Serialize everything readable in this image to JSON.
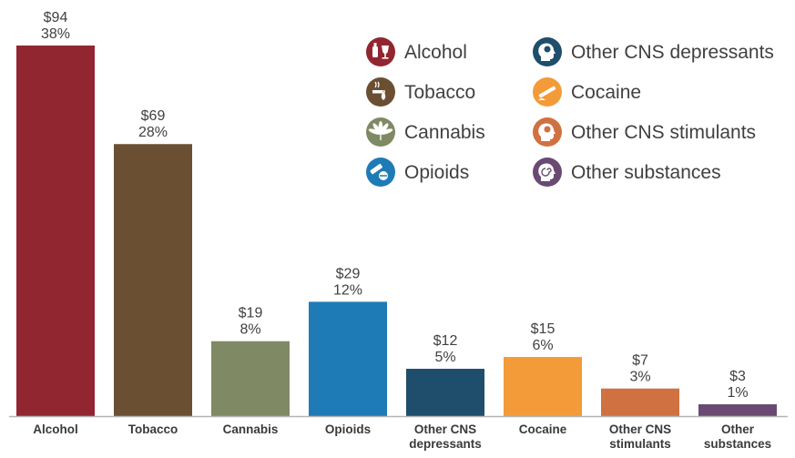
{
  "chart_data": {
    "type": "bar",
    "categories": [
      "Alcohol",
      "Tobacco",
      "Cannabis",
      "Opioids",
      "Other CNS depressants",
      "Cocaine",
      "Other CNS stimulants",
      "Other substances"
    ],
    "category_lines": [
      [
        "Alcohol"
      ],
      [
        "Tobacco"
      ],
      [
        "Cannabis"
      ],
      [
        "Opioids"
      ],
      [
        "Other CNS",
        "depressants"
      ],
      [
        "Cocaine"
      ],
      [
        "Other CNS",
        "stimulants"
      ],
      [
        "Other",
        "substances"
      ]
    ],
    "values": [
      94,
      69,
      19,
      29,
      12,
      15,
      7,
      3
    ],
    "value_labels": [
      "$94",
      "$69",
      "$19",
      "$29",
      "$12",
      "$15",
      "$7",
      "$3"
    ],
    "percent_labels": [
      "38%",
      "28%",
      "8%",
      "12%",
      "5%",
      "6%",
      "3%",
      "1%"
    ],
    "colors": [
      "#922630",
      "#6b4f33",
      "#7f8a65",
      "#1f7bb6",
      "#1e4e6b",
      "#f39a39",
      "#d07142",
      "#6a4a73"
    ],
    "icons": [
      "alcohol-icon",
      "tobacco-icon",
      "cannabis-icon",
      "opioids-icon",
      "cns-depressants-icon",
      "cocaine-icon",
      "cns-stimulants-icon",
      "other-substances-icon"
    ],
    "ylim": [
      0,
      100
    ],
    "grid": false,
    "legend": {
      "placement": "top-right",
      "columns": [
        [
          "Alcohol",
          "Tobacco",
          "Cannabis",
          "Opioids"
        ],
        [
          "Other CNS depressants",
          "Cocaine",
          "Other CNS stimulants",
          "Other substances"
        ]
      ]
    }
  }
}
